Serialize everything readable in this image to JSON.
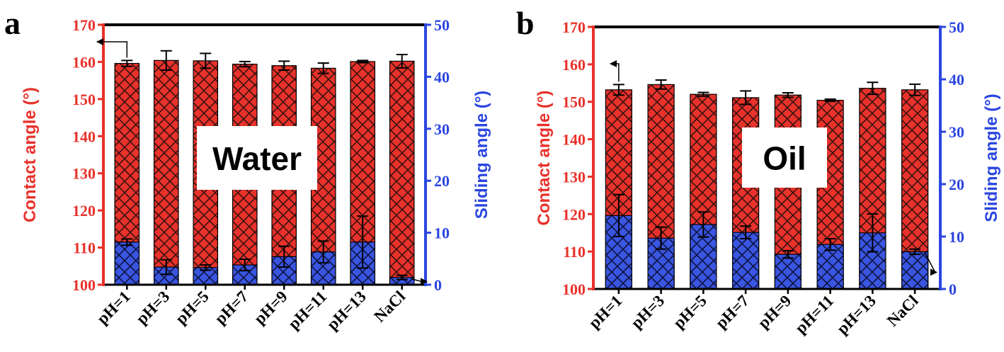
{
  "colors": {
    "contact": "#e8322b",
    "sliding": "#3a55e0",
    "left_axis": "#e8322b",
    "right_axis": "#2b46e0",
    "frame": "#000000"
  },
  "chart_data": [
    {
      "type": "bar",
      "panel_label": "a",
      "overlay_label": "Water",
      "categories": [
        "pH=1",
        "pH=3",
        "pH=5",
        "pH=7",
        "pH=9",
        "pH=11",
        "pH=13",
        "NaCl"
      ],
      "ylabel_left": "Contact angle (°)",
      "ylabel_right": "Sliding angle (°)",
      "ylim_left": [
        100,
        170
      ],
      "ylim_right": [
        0,
        50
      ],
      "yticks_left": [
        100,
        110,
        120,
        130,
        140,
        150,
        160,
        170
      ],
      "yticks_right": [
        0,
        10,
        20,
        30,
        40,
        50
      ],
      "series": [
        {
          "name": "Contact angle",
          "axis": "left",
          "values": [
            159.6,
            160.4,
            160.3,
            159.4,
            159.0,
            158.3,
            160.1,
            160.2
          ],
          "errors": [
            0.8,
            2.6,
            2.0,
            0.7,
            1.2,
            1.4,
            0.3,
            1.8
          ]
        },
        {
          "name": "Sliding angle",
          "axis": "right",
          "values": [
            8.2,
            3.4,
            3.3,
            3.8,
            5.4,
            6.3,
            8.2,
            1.4
          ],
          "errors": [
            0.6,
            1.4,
            0.5,
            1.1,
            2.0,
            2.1,
            5.0,
            0.4
          ]
        }
      ],
      "arrows": [
        {
          "series": "Contact angle",
          "points_to": "left"
        },
        {
          "series": "Sliding angle",
          "points_to": "right"
        }
      ]
    },
    {
      "type": "bar",
      "panel_label": "b",
      "overlay_label": "Oil",
      "categories": [
        "pH=1",
        "pH=3",
        "pH=5",
        "pH=7",
        "pH=9",
        "pH=11",
        "pH=13",
        "NaCl"
      ],
      "ylabel_left": "Contact angle (°)",
      "ylabel_right": "Sliding angle (°)",
      "ylim_left": [
        100,
        170
      ],
      "ylim_right": [
        0,
        50
      ],
      "yticks_left": [
        100,
        110,
        120,
        130,
        140,
        150,
        160,
        170
      ],
      "yticks_right": [
        0,
        10,
        20,
        30,
        40,
        50
      ],
      "series": [
        {
          "name": "Contact angle",
          "axis": "left",
          "values": [
            153.2,
            154.6,
            152.0,
            151.1,
            151.8,
            150.4,
            153.6,
            153.2
          ],
          "errors": [
            1.4,
            1.2,
            0.5,
            1.8,
            0.6,
            0.3,
            1.6,
            1.5
          ]
        },
        {
          "name": "Sliding angle",
          "axis": "right",
          "values": [
            14.0,
            9.7,
            12.3,
            10.8,
            6.6,
            8.5,
            10.7,
            7.1
          ],
          "errors": [
            4.0,
            2.1,
            2.4,
            1.2,
            0.7,
            1.1,
            3.6,
            0.5
          ]
        }
      ],
      "arrows": [
        {
          "series": "Contact angle",
          "points_to": "left"
        },
        {
          "series": "Sliding angle",
          "points_to": "right"
        }
      ]
    }
  ]
}
